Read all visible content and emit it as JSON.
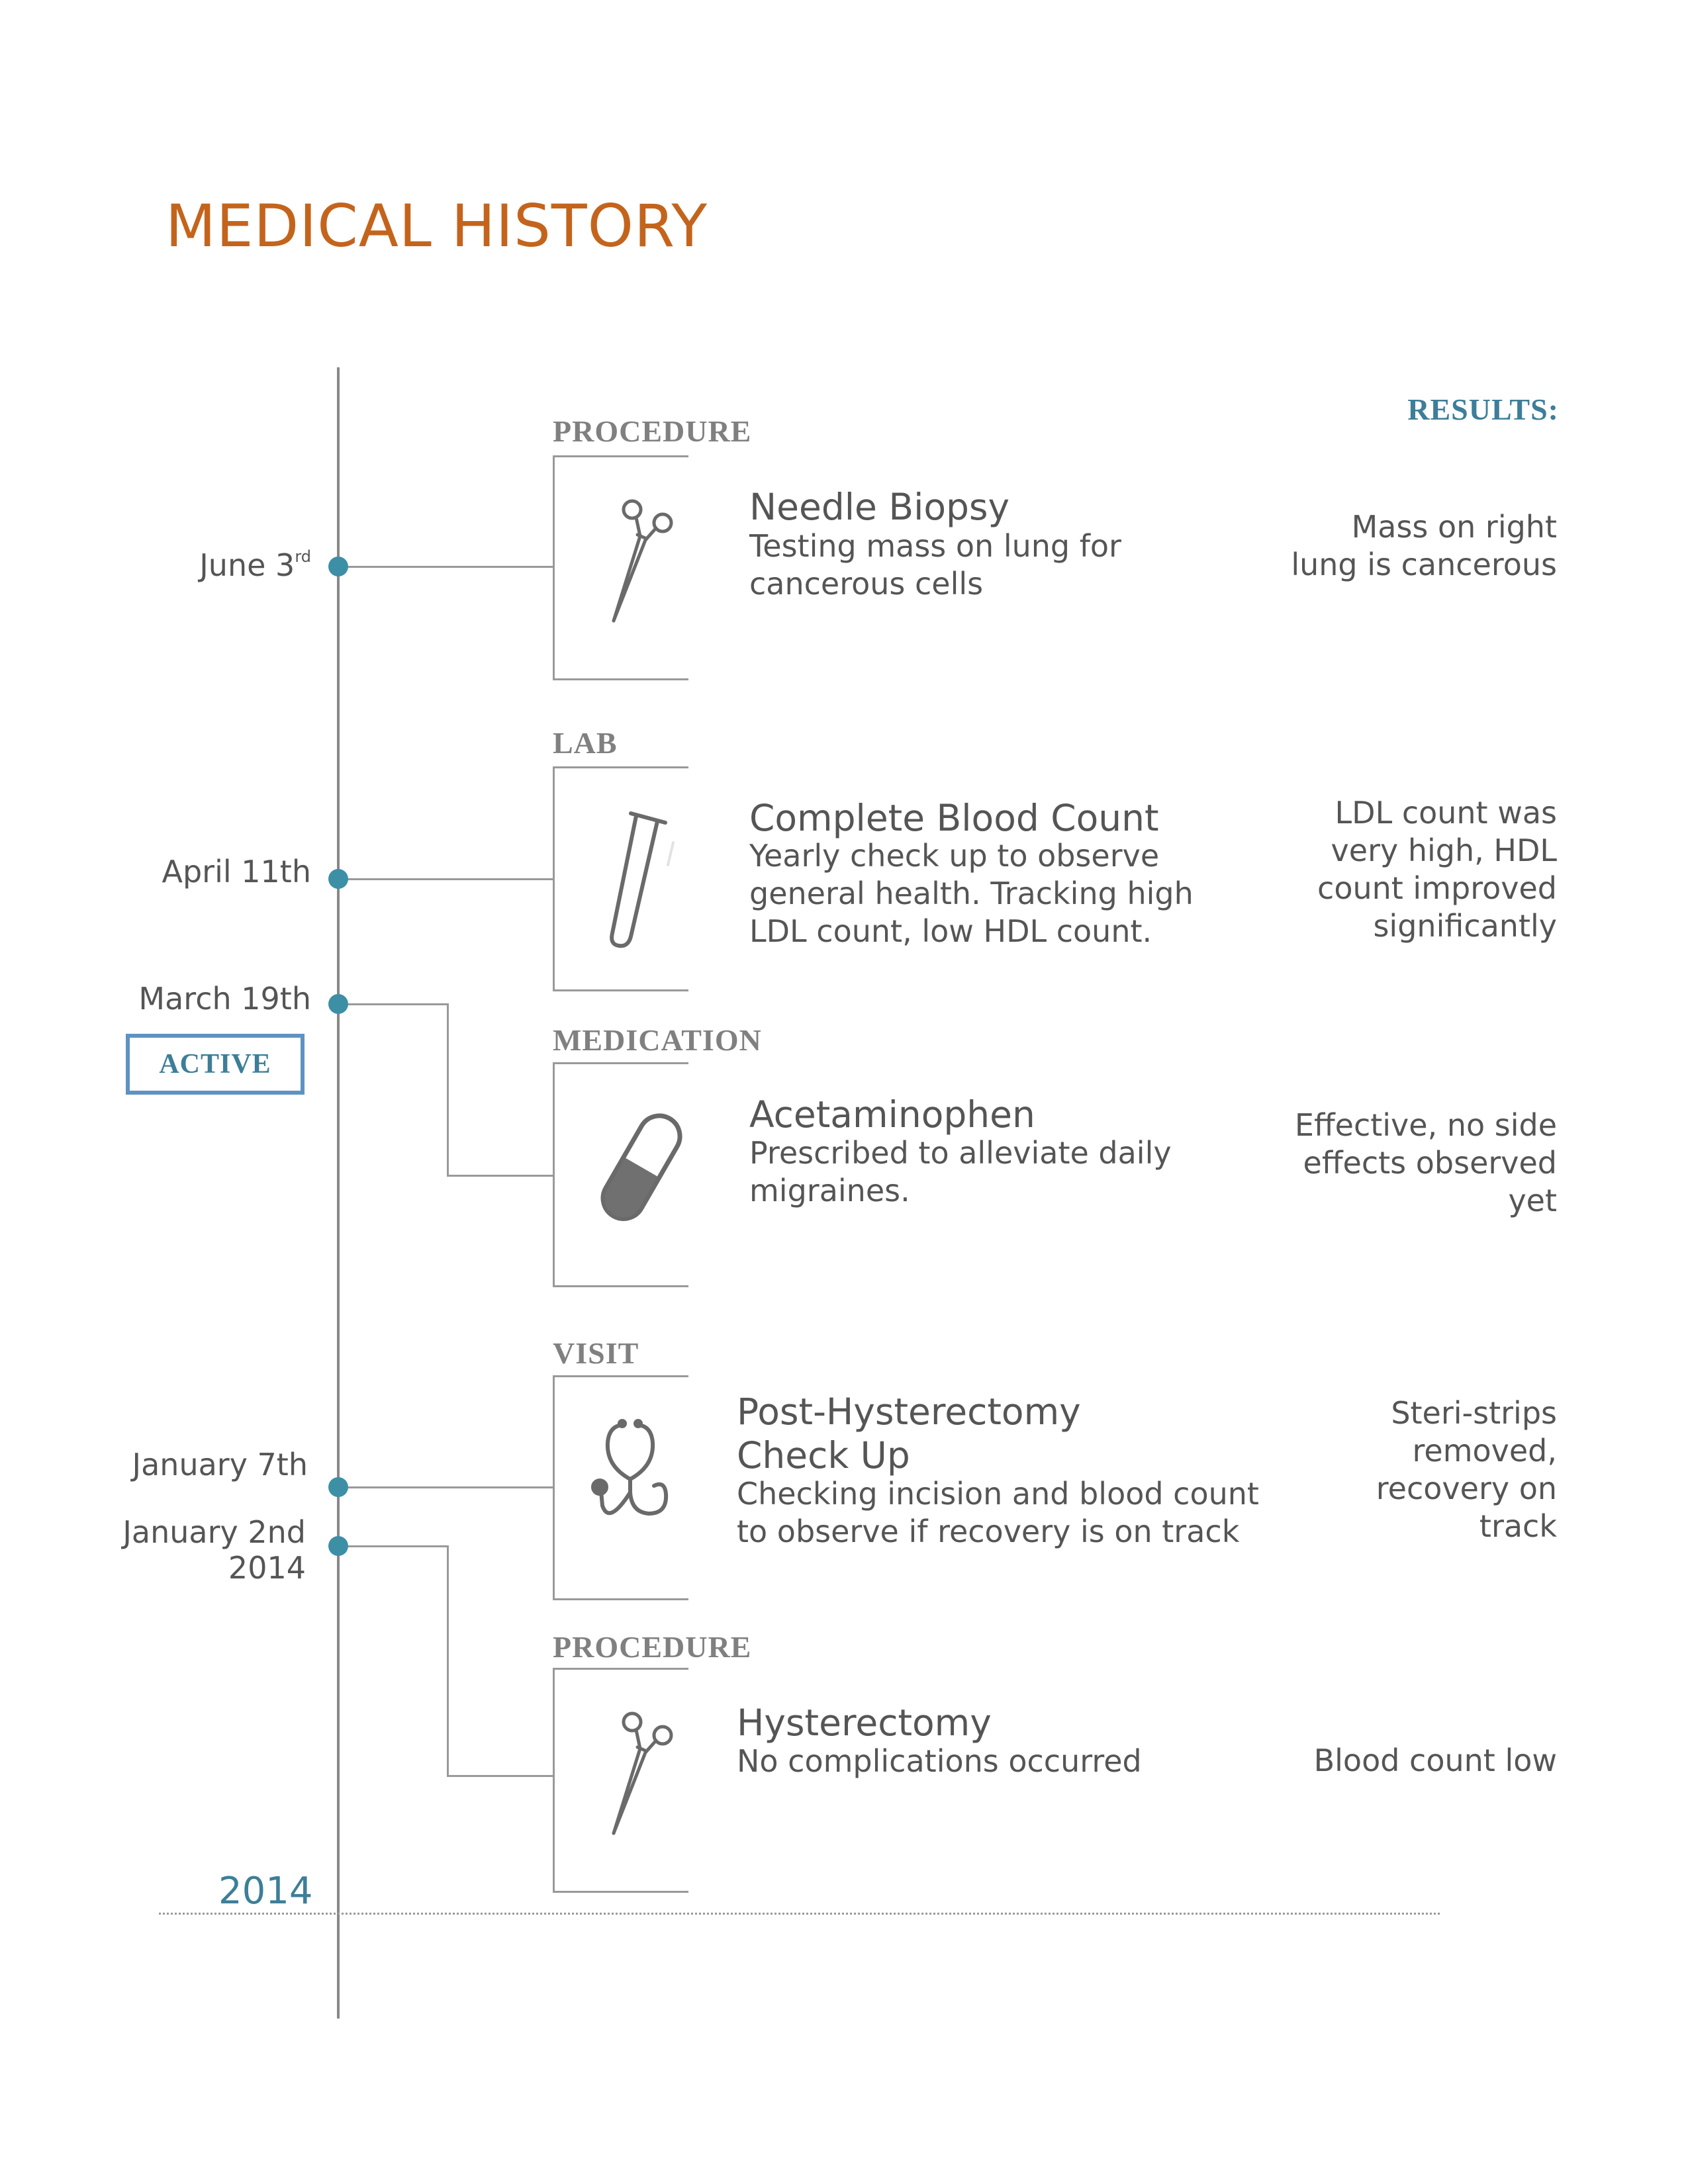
{
  "page": {
    "title": "MEDICAL HISTORY",
    "results_header": "RESULTS:",
    "year_label": "2014",
    "active_badge": "ACTIVE"
  },
  "colors": {
    "title": "#c4641c",
    "accent": "#3d7e98",
    "dot": "#3d8fa6",
    "badge_border": "#5e92c2",
    "text": "#555555",
    "category": "#808080"
  },
  "timeline": {
    "dates": [
      {
        "main": "June 3",
        "sup": "rd"
      },
      {
        "main": "April 11th"
      },
      {
        "main": "March 19th"
      },
      {
        "main": "January 7th"
      },
      {
        "main": "January 2nd",
        "line2": "2014"
      }
    ]
  },
  "entries": [
    {
      "category": "PROCEDURE",
      "icon": "forceps-icon",
      "title": "Needle Biopsy",
      "description": [
        "Testing mass on lung for",
        "cancerous cells"
      ],
      "result": [
        "Mass on right",
        "lung is cancerous"
      ]
    },
    {
      "category": "LAB",
      "icon": "test-tube-icon",
      "title": "Complete Blood Count",
      "description": [
        "Yearly check up to observe",
        "general health. Tracking high",
        "LDL count, low HDL count."
      ],
      "result": [
        "LDL count was",
        "very high, HDL",
        "count improved",
        "significantly"
      ]
    },
    {
      "category": "MEDICATION",
      "icon": "capsule-icon",
      "title": "Acetaminophen",
      "description": [
        "Prescribed to alleviate daily",
        "migraines."
      ],
      "result": [
        "Effective, no side",
        "effects observed",
        "yet"
      ]
    },
    {
      "category": "VISIT",
      "icon": "stethoscope-icon",
      "title": [
        "Post-Hysterectomy",
        "Check Up"
      ],
      "description": [
        "Checking incision and blood count",
        "to observe if recovery is on track"
      ],
      "result": [
        "Steri-strips",
        "removed,",
        "recovery on",
        "track"
      ]
    },
    {
      "category": "PROCEDURE",
      "icon": "forceps-icon",
      "title": "Hysterectomy",
      "description": [
        "No complications occurred"
      ],
      "result": [
        "Blood count low"
      ]
    }
  ]
}
